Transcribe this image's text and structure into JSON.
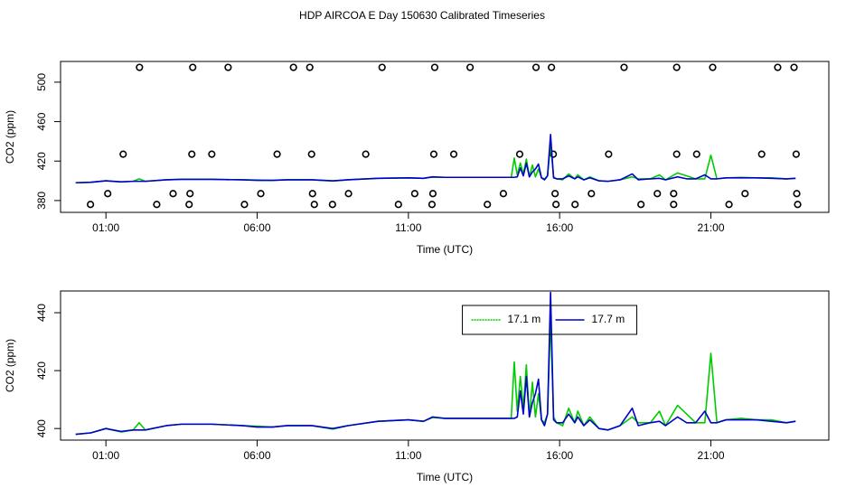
{
  "chart_data": [
    {
      "type": "line",
      "title": "HDP AIRCOA E  Day 150630  Calibrated Timeseries",
      "x_label": "Time (UTC)",
      "y_label": "CO2 (ppm)",
      "xlim": [
        -0.5,
        24.9
      ],
      "ylim": [
        368,
        521
      ],
      "xticks": [
        {
          "value": 1,
          "label": "01:00"
        },
        {
          "value": 6,
          "label": "06:00"
        },
        {
          "value": 11,
          "label": "11:00"
        },
        {
          "value": 16,
          "label": "16:00"
        },
        {
          "value": 21,
          "label": "21:00"
        }
      ],
      "yticks": [
        380,
        420,
        460,
        500
      ],
      "x": [
        0,
        0.5,
        1,
        1.5,
        1.9,
        2.1,
        2.3,
        3,
        3.5,
        4.5,
        5.5,
        6,
        6.5,
        7,
        7.8,
        8.5,
        9,
        10,
        11,
        11.5,
        11.8,
        12.2,
        13,
        14,
        14.4,
        14.5,
        14.6,
        14.7,
        14.8,
        14.9,
        15.0,
        15.1,
        15.2,
        15.3,
        15.4,
        15.5,
        15.6,
        15.7,
        15.8,
        15.9,
        16.1,
        16.3,
        16.5,
        16.6,
        16.8,
        17.0,
        17.3,
        17.6,
        18.0,
        18.4,
        18.6,
        19.0,
        19.3,
        19.5,
        19.9,
        20.2,
        20.5,
        20.8,
        21.0,
        21.2,
        21.5,
        22,
        22.5,
        23,
        23.5,
        23.8
      ],
      "series": [
        {
          "color": "#00cc00",
          "values": [
            398,
            398.5,
            400,
            398.8,
            399.5,
            402,
            399.5,
            401,
            401.5,
            401.5,
            401,
            400.8,
            400.5,
            401,
            401,
            399.8,
            401,
            402.5,
            403,
            402.5,
            403.8,
            403.5,
            403.5,
            403.5,
            403.5,
            423,
            406,
            418,
            407,
            422,
            404,
            416,
            404,
            412,
            403,
            402,
            405,
            438,
            404,
            402,
            401,
            407,
            402,
            406,
            401,
            404,
            400,
            399.5,
            401,
            404,
            402,
            402,
            406,
            401,
            408,
            405,
            402,
            402,
            426,
            402,
            403,
            403.5,
            403,
            403,
            402,
            402.5
          ]
        },
        {
          "color": "#0000cc",
          "values": [
            398,
            398.5,
            400,
            399,
            399.5,
            399.5,
            399.5,
            401,
            401.5,
            401.5,
            401,
            400.5,
            400.5,
            401,
            401,
            400,
            401,
            402.5,
            403,
            402.5,
            404,
            403.5,
            403.5,
            403.5,
            403.5,
            403.5,
            404,
            413,
            405,
            418,
            404,
            409,
            412,
            417,
            403,
            401,
            405,
            447,
            403,
            402,
            402,
            405,
            402,
            404,
            401,
            403,
            400,
            399.5,
            401,
            407,
            401,
            402,
            402.5,
            401,
            404,
            402,
            402,
            406,
            402,
            402,
            403,
            403,
            403,
            402.5,
            402,
            402.5
          ]
        }
      ],
      "scatter": {
        "color": "#000000",
        "x": [
          2.11,
          3.87,
          5.04,
          7.2,
          7.74,
          10.13,
          11.87,
          13.04,
          15.22,
          15.73,
          18.13,
          19.87,
          21.06,
          23.21,
          23.75,
          1.57,
          3.84,
          4.5,
          6.66,
          7.8,
          9.59,
          11.84,
          12.5,
          14.68,
          15.79,
          17.62,
          19.87,
          20.53,
          22.68,
          23.82,
          1.06,
          3.22,
          3.78,
          6.12,
          7.83,
          9.02,
          11.21,
          11.81,
          14.14,
          15.85,
          17.05,
          19.23,
          19.77,
          22.13,
          23.84,
          0.49,
          2.68,
          3.75,
          5.58,
          7.89,
          8.49,
          10.67,
          11.78,
          13.61,
          15.88,
          16.51,
          18.69,
          19.77,
          21.6,
          23.87
        ],
        "values": [
          515,
          515,
          515,
          515,
          515,
          515,
          515,
          515,
          515,
          515,
          515,
          515,
          515,
          515,
          515,
          427,
          427,
          427,
          427,
          427,
          427,
          427,
          427,
          427,
          427,
          427,
          427,
          427,
          427,
          427,
          387,
          387,
          387,
          387,
          387,
          387,
          387,
          387,
          387,
          387,
          387,
          387,
          387,
          387,
          387,
          376,
          376,
          376,
          376,
          376,
          376,
          376,
          376,
          376,
          376,
          376,
          376,
          376,
          376,
          376
        ]
      }
    },
    {
      "type": "line",
      "x_label": "Time (UTC)",
      "y_label": "CO2 (ppm)",
      "xlim": [
        -0.5,
        24.9
      ],
      "ylim": [
        396,
        447.5
      ],
      "xticks": [
        {
          "value": 1,
          "label": "01:00"
        },
        {
          "value": 6,
          "label": "06:00"
        },
        {
          "value": 11,
          "label": "11:00"
        },
        {
          "value": 16,
          "label": "16:00"
        },
        {
          "value": 21,
          "label": "21:00"
        }
      ],
      "yticks": [
        400,
        420,
        440
      ],
      "legend": "top-center",
      "x": [
        0,
        0.5,
        1,
        1.5,
        1.9,
        2.1,
        2.3,
        3,
        3.5,
        4.5,
        5.5,
        6,
        6.5,
        7,
        7.8,
        8.5,
        9,
        10,
        11,
        11.5,
        11.8,
        12.2,
        13,
        14,
        14.4,
        14.5,
        14.6,
        14.7,
        14.8,
        14.9,
        15.0,
        15.1,
        15.2,
        15.3,
        15.4,
        15.5,
        15.6,
        15.7,
        15.8,
        15.9,
        16.1,
        16.3,
        16.5,
        16.6,
        16.8,
        17.0,
        17.3,
        17.6,
        18.0,
        18.4,
        18.6,
        19.0,
        19.3,
        19.5,
        19.9,
        20.2,
        20.5,
        20.8,
        21.0,
        21.2,
        21.5,
        22,
        22.5,
        23,
        23.5,
        23.8
      ],
      "series": [
        {
          "name": "17.1 m",
          "color": "#00cc00",
          "values": [
            398,
            398.5,
            400,
            398.8,
            399.5,
            402,
            399.5,
            401,
            401.5,
            401.5,
            401,
            400.8,
            400.5,
            401,
            401,
            399.8,
            401,
            402.5,
            403,
            402.5,
            403.8,
            403.5,
            403.5,
            403.5,
            403.5,
            423,
            406,
            418,
            407,
            422,
            404,
            416,
            404,
            412,
            403,
            402,
            405,
            438,
            404,
            402,
            401,
            407,
            402,
            406,
            401,
            404,
            400,
            399.5,
            401,
            404,
            402,
            402,
            406,
            401,
            408,
            405,
            402,
            402,
            426,
            402,
            403,
            403.5,
            403,
            403,
            402,
            402.5
          ]
        },
        {
          "name": "17.7 m",
          "color": "#0000cc",
          "values": [
            398,
            398.5,
            400,
            399,
            399.5,
            399.5,
            399.5,
            401,
            401.5,
            401.5,
            401,
            400.5,
            400.5,
            401,
            401,
            400,
            401,
            402.5,
            403,
            402.5,
            404,
            403.5,
            403.5,
            403.5,
            403.5,
            403.5,
            404,
            413,
            405,
            418,
            404,
            409,
            412,
            417,
            403,
            401,
            405,
            447,
            403,
            402,
            402,
            405,
            402,
            404,
            401,
            403,
            400,
            399.5,
            401,
            407,
            401,
            402,
            402.5,
            401,
            404,
            402,
            402,
            406,
            402,
            402,
            403,
            403,
            403,
            402.5,
            402,
            402.5
          ]
        }
      ]
    }
  ]
}
